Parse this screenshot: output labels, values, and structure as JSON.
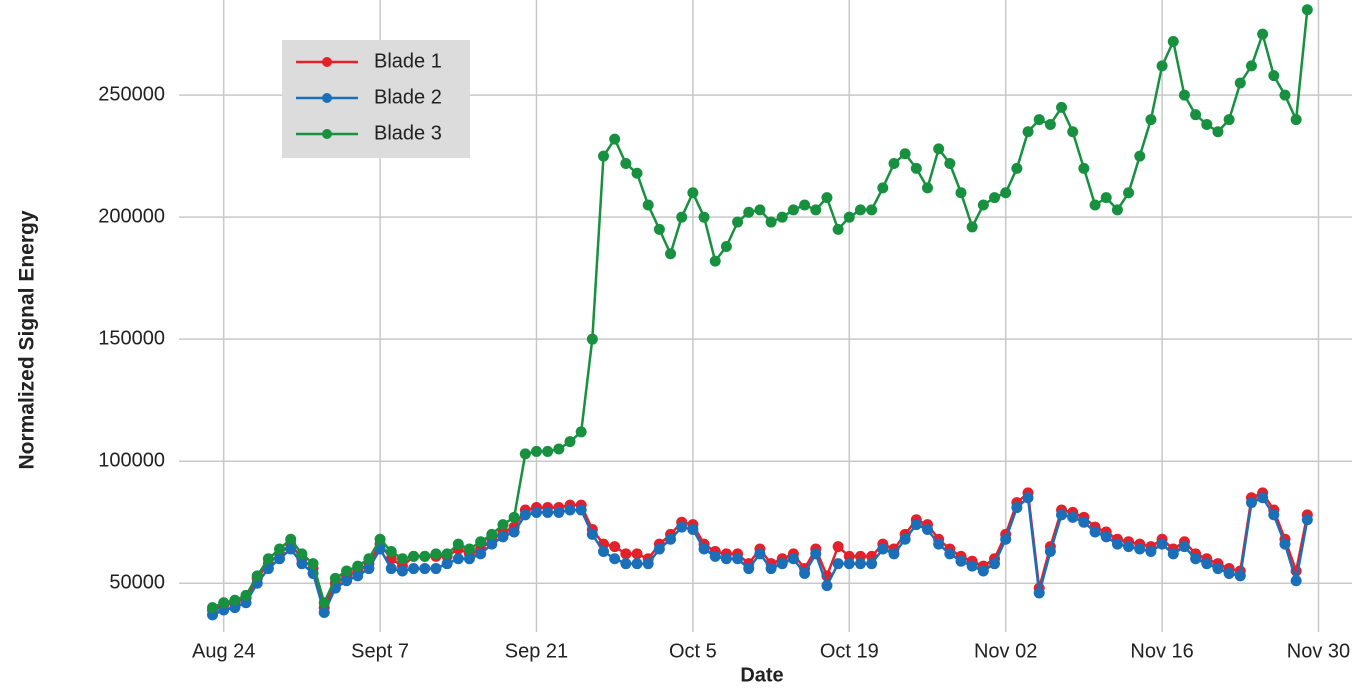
{
  "chart_data": {
    "type": "line",
    "y_label": "Normalized Signal Energy",
    "x_label": "Date",
    "x": [
      "08-23",
      "08-24",
      "08-25",
      "08-26",
      "08-27",
      "08-28",
      "08-29",
      "08-30",
      "08-31",
      "09-01",
      "09-02",
      "09-03",
      "09-04",
      "09-05",
      "09-06",
      "09-07",
      "09-08",
      "09-09",
      "09-10",
      "09-11",
      "09-12",
      "09-13",
      "09-14",
      "09-15",
      "09-16",
      "09-17",
      "09-18",
      "09-19",
      "09-20",
      "09-21",
      "09-22",
      "09-23",
      "09-24",
      "09-25",
      "09-26",
      "09-27",
      "09-28",
      "09-29",
      "09-30",
      "10-01",
      "10-02",
      "10-03",
      "10-04",
      "10-05",
      "10-06",
      "10-07",
      "10-08",
      "10-09",
      "10-10",
      "10-11",
      "10-12",
      "10-13",
      "10-14",
      "10-15",
      "10-16",
      "10-17",
      "10-18",
      "10-19",
      "10-20",
      "10-21",
      "10-22",
      "10-23",
      "10-24",
      "10-25",
      "10-26",
      "10-27",
      "10-28",
      "10-29",
      "10-30",
      "10-31",
      "11-01",
      "11-02",
      "11-03",
      "11-04",
      "11-05",
      "11-06",
      "11-07",
      "11-08",
      "11-09",
      "11-10",
      "11-11",
      "11-12",
      "11-13",
      "11-14",
      "11-15",
      "11-16",
      "11-17",
      "11-18",
      "11-19",
      "11-20",
      "11-21",
      "11-22",
      "11-23",
      "11-24",
      "11-25",
      "11-26",
      "11-27",
      "11-28",
      "11-29"
    ],
    "series": [
      {
        "name": "Blade 1",
        "color": "#e4202a",
        "values": [
          39000,
          41000,
          42000,
          44000,
          52000,
          58000,
          62000,
          66000,
          60000,
          56000,
          40000,
          50000,
          53000,
          55000,
          58000,
          66000,
          60000,
          57000,
          61000,
          61000,
          61000,
          61000,
          64000,
          62000,
          64000,
          68000,
          71000,
          73000,
          80000,
          81000,
          81000,
          81000,
          82000,
          82000,
          72000,
          66000,
          65000,
          62000,
          62000,
          60000,
          66000,
          70000,
          75000,
          74000,
          66000,
          63000,
          62000,
          62000,
          58000,
          64000,
          58000,
          60000,
          62000,
          56000,
          64000,
          53000,
          65000,
          61000,
          61000,
          61000,
          66000,
          64000,
          70000,
          76000,
          74000,
          68000,
          64000,
          61000,
          59000,
          57000,
          60000,
          70000,
          83000,
          87000,
          48000,
          65000,
          80000,
          79000,
          77000,
          73000,
          71000,
          68000,
          67000,
          66000,
          65000,
          68000,
          64000,
          67000,
          62000,
          60000,
          58000,
          56000,
          55000,
          85000,
          87000,
          80000,
          68000,
          55000,
          78000
        ]
      },
      {
        "name": "Blade 2",
        "color": "#1a6fb8",
        "values": [
          37000,
          39000,
          40000,
          42000,
          50000,
          56000,
          60000,
          64000,
          58000,
          54000,
          38000,
          48000,
          51000,
          53000,
          56000,
          64000,
          56000,
          55000,
          56000,
          56000,
          56000,
          58000,
          60000,
          60000,
          62000,
          66000,
          69000,
          71000,
          78000,
          79000,
          79000,
          79000,
          80000,
          80000,
          70000,
          63000,
          60000,
          58000,
          58000,
          58000,
          64000,
          68000,
          73000,
          72000,
          64000,
          61000,
          60000,
          60000,
          56000,
          62000,
          56000,
          58000,
          60000,
          54000,
          62000,
          49000,
          58000,
          58000,
          58000,
          58000,
          64000,
          62000,
          68000,
          74000,
          72000,
          66000,
          62000,
          59000,
          57000,
          55000,
          58000,
          68000,
          81000,
          85000,
          46000,
          63000,
          78000,
          77000,
          75000,
          71000,
          69000,
          66000,
          65000,
          64000,
          63000,
          66000,
          62000,
          65000,
          60000,
          58000,
          56000,
          54000,
          53000,
          83000,
          85000,
          78000,
          66000,
          51000,
          76000
        ]
      },
      {
        "name": "Blade 3",
        "color": "#17913f",
        "values": [
          40000,
          42000,
          43000,
          45000,
          53000,
          60000,
          64000,
          68000,
          62000,
          58000,
          42000,
          52000,
          55000,
          57000,
          60000,
          68000,
          63000,
          60000,
          61000,
          61000,
          62000,
          62000,
          66000,
          64000,
          67000,
          70000,
          74000,
          77000,
          103000,
          104000,
          104000,
          105000,
          108000,
          112000,
          150000,
          225000,
          232000,
          222000,
          218000,
          205000,
          195000,
          185000,
          200000,
          210000,
          200000,
          182000,
          188000,
          198000,
          202000,
          203000,
          198000,
          200000,
          203000,
          205000,
          203000,
          208000,
          195000,
          200000,
          203000,
          203000,
          212000,
          222000,
          226000,
          220000,
          212000,
          228000,
          222000,
          210000,
          196000,
          205000,
          208000,
          210000,
          220000,
          235000,
          240000,
          238000,
          245000,
          235000,
          220000,
          205000,
          208000,
          203000,
          210000,
          225000,
          240000,
          262000,
          272000,
          250000,
          242000,
          238000,
          235000,
          240000,
          255000,
          262000,
          275000,
          258000,
          250000,
          240000,
          285000
        ]
      }
    ],
    "xlim": [
      "08-20",
      "12-03"
    ],
    "xticks": [
      {
        "value": "08-24",
        "label": "Aug 24"
      },
      {
        "value": "09-07",
        "label": "Sept 7"
      },
      {
        "value": "09-21",
        "label": "Sep 21"
      },
      {
        "value": "10-05",
        "label": "Oct 5"
      },
      {
        "value": "10-19",
        "label": "Oct 19"
      },
      {
        "value": "11-02",
        "label": "Nov 02"
      },
      {
        "value": "11-16",
        "label": "Nov 16"
      },
      {
        "value": "11-30",
        "label": "Nov 30"
      }
    ],
    "ylim": [
      30000,
      289000
    ],
    "yticks": [
      50000,
      100000,
      150000,
      200000,
      250000
    ],
    "grid": true,
    "legend": "upper left"
  }
}
